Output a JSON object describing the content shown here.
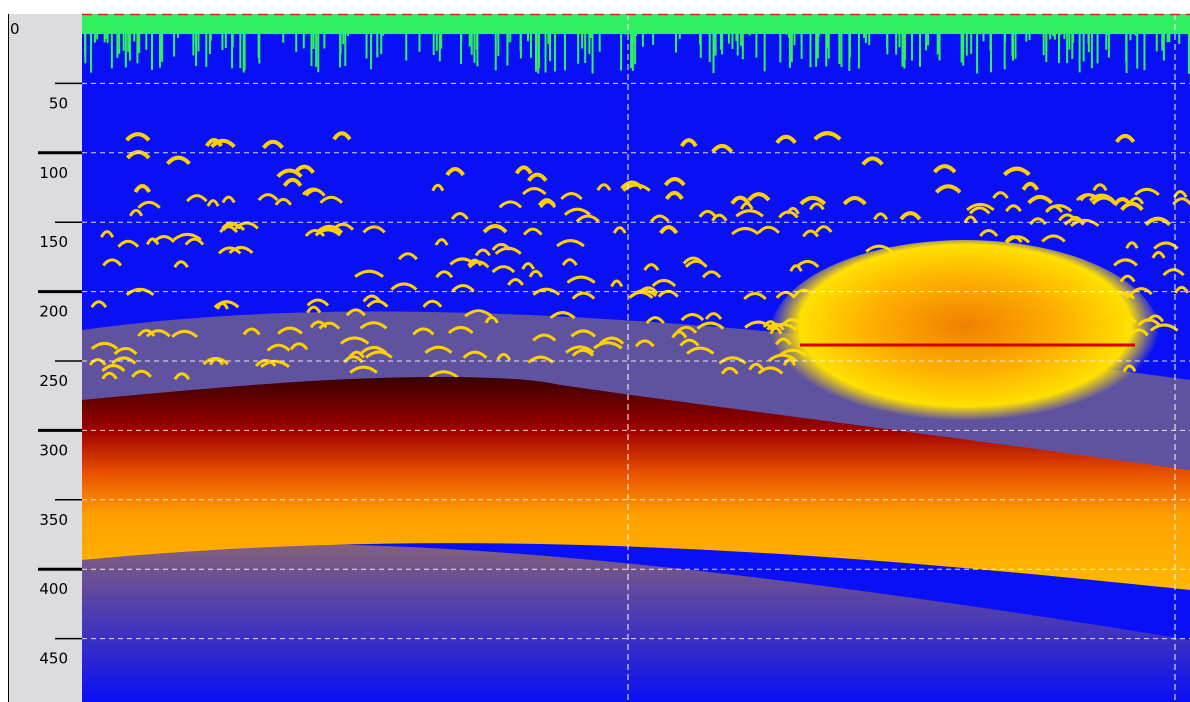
{
  "depth_axis": {
    "labels": [
      0,
      50,
      100,
      150,
      200,
      250,
      300,
      350,
      400,
      450
    ]
  }
}
